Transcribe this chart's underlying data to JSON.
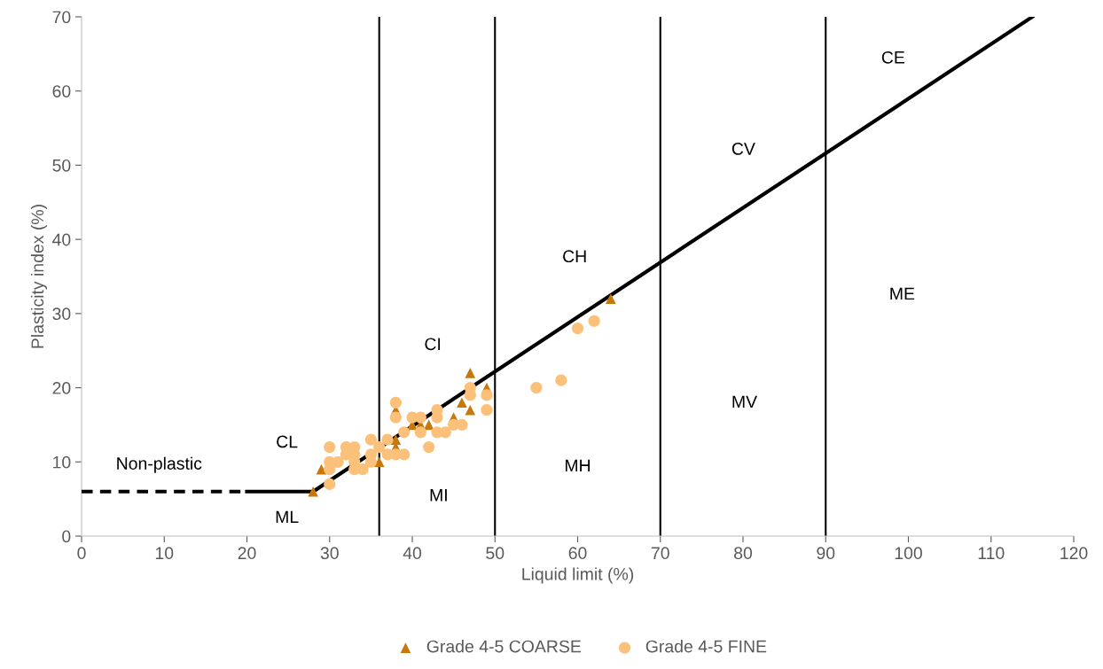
{
  "chart_data": {
    "type": "scatter",
    "xlabel": "Liquid limit (%)",
    "ylabel": "Plasticity index (%)",
    "xlim": [
      0,
      120
    ],
    "ylim": [
      0,
      70
    ],
    "xticks": [
      0,
      10,
      20,
      30,
      40,
      50,
      60,
      70,
      80,
      90,
      100,
      110,
      120
    ],
    "yticks": [
      0,
      10,
      20,
      30,
      40,
      50,
      60,
      70
    ],
    "grid": false,
    "legend": "bottom",
    "series": [
      {
        "type": "line",
        "color": "#000000",
        "line_style": "dashed",
        "marker": "none",
        "x": [
          0,
          20
        ],
        "values": [
          6,
          6
        ]
      },
      {
        "type": "line",
        "color": "#000000",
        "line_style": "solid",
        "marker": "none",
        "x": [
          20,
          28
        ],
        "values": [
          6,
          6
        ]
      },
      {
        "type": "line",
        "color": "#000000",
        "line_style": "solid",
        "marker": "none",
        "x": [
          28,
          115
        ],
        "values": [
          6,
          70
        ]
      },
      {
        "name": "Grade 4-5 COARSE",
        "color": "#c8770a",
        "marker": "triangle",
        "x": [
          28,
          29,
          36,
          38,
          38,
          38,
          40,
          41,
          42,
          45,
          46,
          47,
          47,
          49,
          64
        ],
        "values": [
          6,
          9,
          10,
          13,
          12,
          17,
          15,
          15,
          15,
          16,
          18,
          22,
          17,
          20,
          32
        ]
      },
      {
        "name": "Grade 4-5 FINE",
        "color": "#fbc17a",
        "marker": "circle",
        "x": [
          30,
          30,
          30,
          30,
          32,
          33,
          32,
          31,
          33,
          33,
          33,
          34,
          35,
          35,
          35,
          36,
          37,
          37,
          38,
          39,
          39,
          38,
          38,
          40,
          41,
          41,
          43,
          43,
          43,
          44,
          42,
          45,
          46,
          47,
          47,
          49,
          49,
          55,
          58,
          60,
          62
        ],
        "values": [
          7,
          12,
          10,
          9,
          12,
          12,
          11,
          10,
          11,
          10,
          9,
          9,
          13,
          11,
          10,
          12,
          13,
          11,
          11,
          11,
          14,
          18,
          16,
          16,
          16,
          14,
          17,
          16,
          14,
          14,
          12,
          15,
          15,
          20,
          19,
          19,
          17,
          20,
          21,
          28,
          29
        ]
      }
    ],
    "ref_lines": [
      {
        "axis": "x",
        "value": 36,
        "color": "#000000"
      },
      {
        "axis": "x",
        "value": 50,
        "color": "#000000"
      },
      {
        "axis": "x",
        "value": 70,
        "color": "#000000"
      },
      {
        "axis": "x",
        "value": 90,
        "color": "#000000"
      }
    ],
    "annotations": [
      "Non-plastic",
      "CL",
      "ML",
      "MI",
      "CI",
      "MH",
      "CH",
      "MV",
      "CV",
      "ME",
      "CE"
    ]
  }
}
